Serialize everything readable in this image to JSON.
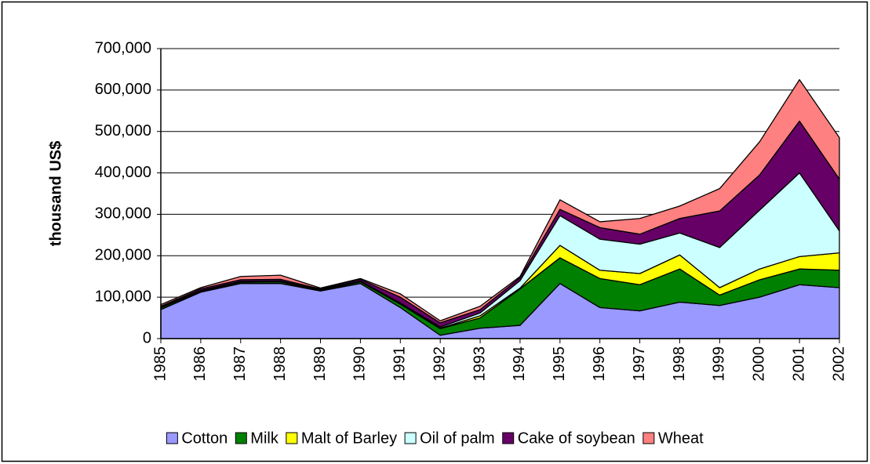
{
  "chart_data": {
    "type": "stacked_area",
    "y_label": "thousand US$",
    "x": [
      1985,
      1986,
      1987,
      1988,
      1989,
      1990,
      1991,
      1992,
      1993,
      1994,
      1995,
      1996,
      1997,
      1998,
      1999,
      2000,
      2001,
      2002
    ],
    "xlim": [
      1985,
      2002
    ],
    "ylim": [
      0,
      700000
    ],
    "yticks": [
      0,
      {
        "value": 100000,
        "label": "100,000"
      },
      {
        "value": 200000,
        "label": "200,000"
      },
      {
        "value": 300000,
        "label": "300,000"
      },
      {
        "value": 400000,
        "label": "400,000"
      },
      {
        "value": 500000,
        "label": "500,000"
      },
      {
        "value": 600000,
        "label": "600,000"
      },
      {
        "value": 700000,
        "label": "700,000"
      }
    ],
    "grid": true,
    "legend": "bottom",
    "series": [
      {
        "name": "Cotton",
        "color": "#9999ff",
        "values": [
          70000,
          112000,
          133000,
          133000,
          115000,
          133000,
          75000,
          8000,
          25000,
          32000,
          133000,
          75000,
          67000,
          88000,
          80000,
          100000,
          130000,
          123000
        ]
      },
      {
        "name": "Milk",
        "color": "#008000",
        "values": [
          4000,
          2000,
          3000,
          4000,
          1000,
          4000,
          8000,
          16000,
          25000,
          88000,
          62000,
          70000,
          63000,
          80000,
          25000,
          42000,
          38000,
          42000
        ]
      },
      {
        "name": "Malt of Barley",
        "color": "#ffff00",
        "values": [
          1000,
          1000,
          1000,
          1000,
          1000,
          1000,
          1000,
          1000,
          5000,
          2000,
          30000,
          20000,
          27000,
          34000,
          18000,
          26000,
          30000,
          42000
        ]
      },
      {
        "name": "Oil of palm",
        "color": "#ccffff",
        "values": [
          1000,
          1000,
          1000,
          1000,
          1000,
          1000,
          2000,
          3000,
          7000,
          18000,
          72000,
          75000,
          71000,
          53000,
          97000,
          142000,
          202000,
          53000
        ]
      },
      {
        "name": "Cake of soybean",
        "color": "#660066",
        "values": [
          2000,
          4000,
          4000,
          4000,
          2000,
          4000,
          14000,
          10000,
          8000,
          7000,
          15000,
          28000,
          24000,
          35000,
          88000,
          85000,
          125000,
          125000
        ]
      },
      {
        "name": "Wheat",
        "color": "#ff8080",
        "values": [
          4000,
          3000,
          8000,
          10000,
          2000,
          2000,
          8000,
          5000,
          8000,
          3000,
          23000,
          14000,
          38000,
          30000,
          54000,
          80000,
          100000,
          100000
        ]
      }
    ]
  }
}
